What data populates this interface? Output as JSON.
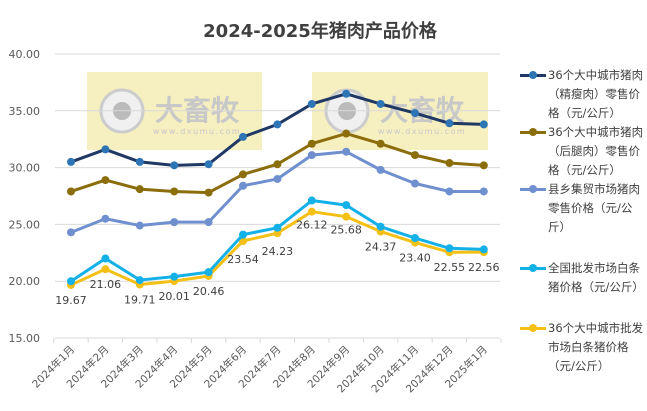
{
  "chart_data": {
    "type": "line",
    "title": "2024-2025年猪肉产品价格",
    "categories": [
      "2024年1月",
      "2024年2月",
      "2024年3月",
      "2024年4月",
      "2024年5月",
      "2024年6月",
      "2024年7月",
      "2024年8月",
      "2024年9月",
      "2024年10月",
      "2024年11月",
      "2024年12月",
      "2025年1月"
    ],
    "ylim": [
      15,
      40
    ],
    "yticks": [
      "15.00",
      "20.00",
      "25.00",
      "30.00",
      "35.00",
      "40.00"
    ],
    "grid": true,
    "legend_position": "right",
    "watermark": "大畜牧 www.dxumu.com",
    "series": [
      {
        "name": "36个大中城市猪肉（精瘦肉）零售价格（元/公斤）",
        "color": "#1f3864",
        "marker": "#2e75b6",
        "values": [
          30.5,
          31.6,
          30.5,
          30.2,
          30.3,
          32.7,
          33.8,
          35.6,
          36.5,
          35.6,
          34.8,
          33.9,
          33.8
        ]
      },
      {
        "name": "36个大中城市猪肉（后腿肉）零售价格（元/公斤）",
        "color": "#8b6d0b",
        "marker": "#8b6d0b",
        "values": [
          27.9,
          28.9,
          28.1,
          27.9,
          27.8,
          29.4,
          30.3,
          32.1,
          33.0,
          32.1,
          31.1,
          30.4,
          30.2
        ]
      },
      {
        "name": "县乡集贸市场猪肉零售价格（元/公斤）",
        "color": "#6f8fcf",
        "marker": "#6f8fcf",
        "values": [
          24.3,
          25.5,
          24.9,
          25.2,
          25.2,
          28.4,
          29.0,
          31.1,
          31.4,
          29.8,
          28.6,
          27.9,
          27.9
        ]
      },
      {
        "name": "全国批发市场白条猪价格（元/公斤）",
        "color": "#14b0e8",
        "marker": "#14b0e8",
        "values": [
          20.0,
          22.0,
          20.1,
          20.4,
          20.8,
          24.1,
          24.7,
          27.1,
          26.7,
          24.8,
          23.8,
          22.9,
          22.8
        ]
      },
      {
        "name": "36个大中城市批发市场白条猪价格（元/公斤）",
        "color": "#f5c016",
        "marker": "#f5c016",
        "values": [
          19.67,
          21.06,
          19.71,
          20.01,
          20.46,
          23.54,
          24.23,
          26.12,
          25.68,
          24.37,
          23.4,
          22.55,
          22.56
        ],
        "labels": [
          "19.67",
          "21.06",
          "19.71",
          "20.01",
          "20.46",
          "23.54",
          "24.23",
          "26.12",
          "25.68",
          "24.37",
          "23.40",
          "22.55",
          "22.56"
        ]
      }
    ]
  }
}
